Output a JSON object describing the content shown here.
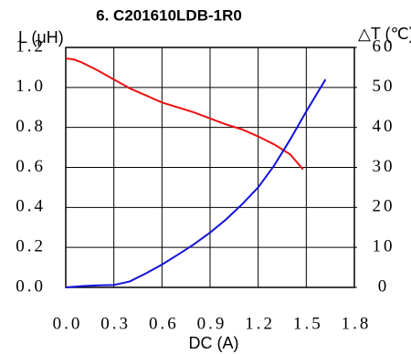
{
  "chart_data": {
    "type": "line",
    "title": "6. C201610LDB-1R0",
    "xlabel": "DC (A)",
    "ylabel": "L (μH)",
    "y2label": "△T (℃)",
    "xlim": [
      0,
      1.8
    ],
    "xticks": [
      {
        "value": 0,
        "label": "0.0"
      },
      0.3,
      0.6,
      0.9,
      1.2,
      1.5,
      1.8
    ],
    "ylim": [
      0,
      1.2
    ],
    "yticks": [
      {
        "value": 0,
        "label": "0.0"
      },
      0.2,
      0.4,
      0.6,
      0.8,
      {
        "value": 1,
        "label": "1.0"
      },
      1.2
    ],
    "y2lim": [
      0,
      60
    ],
    "y2ticks": [
      0,
      10,
      20,
      30,
      40,
      50,
      60
    ],
    "grid": true,
    "series": [
      {
        "color": "#ee1111",
        "axis": "y",
        "x": [
          0,
          0.05,
          0.1,
          0.2,
          0.3,
          0.4,
          0.5,
          0.6,
          0.7,
          0.8,
          0.9,
          1.0,
          1.1,
          1.2,
          1.3,
          1.4,
          1.48
        ],
        "values": [
          1.145,
          1.14,
          1.125,
          1.085,
          1.04,
          0.995,
          0.96,
          0.925,
          0.9,
          0.875,
          0.845,
          0.815,
          0.79,
          0.755,
          0.715,
          0.665,
          0.59
        ]
      },
      {
        "color": "#1111dd",
        "axis": "y2",
        "x": [
          0,
          0.1,
          0.2,
          0.3,
          0.4,
          0.5,
          0.6,
          0.7,
          0.8,
          0.9,
          1.0,
          1.1,
          1.2,
          1.3,
          1.4,
          1.5,
          1.62
        ],
        "values": [
          0,
          0.3,
          0.5,
          0.6,
          1.5,
          3.5,
          5.7,
          8.2,
          10.8,
          13.7,
          17,
          20.8,
          25,
          30.5,
          37,
          44,
          52
        ]
      }
    ]
  }
}
